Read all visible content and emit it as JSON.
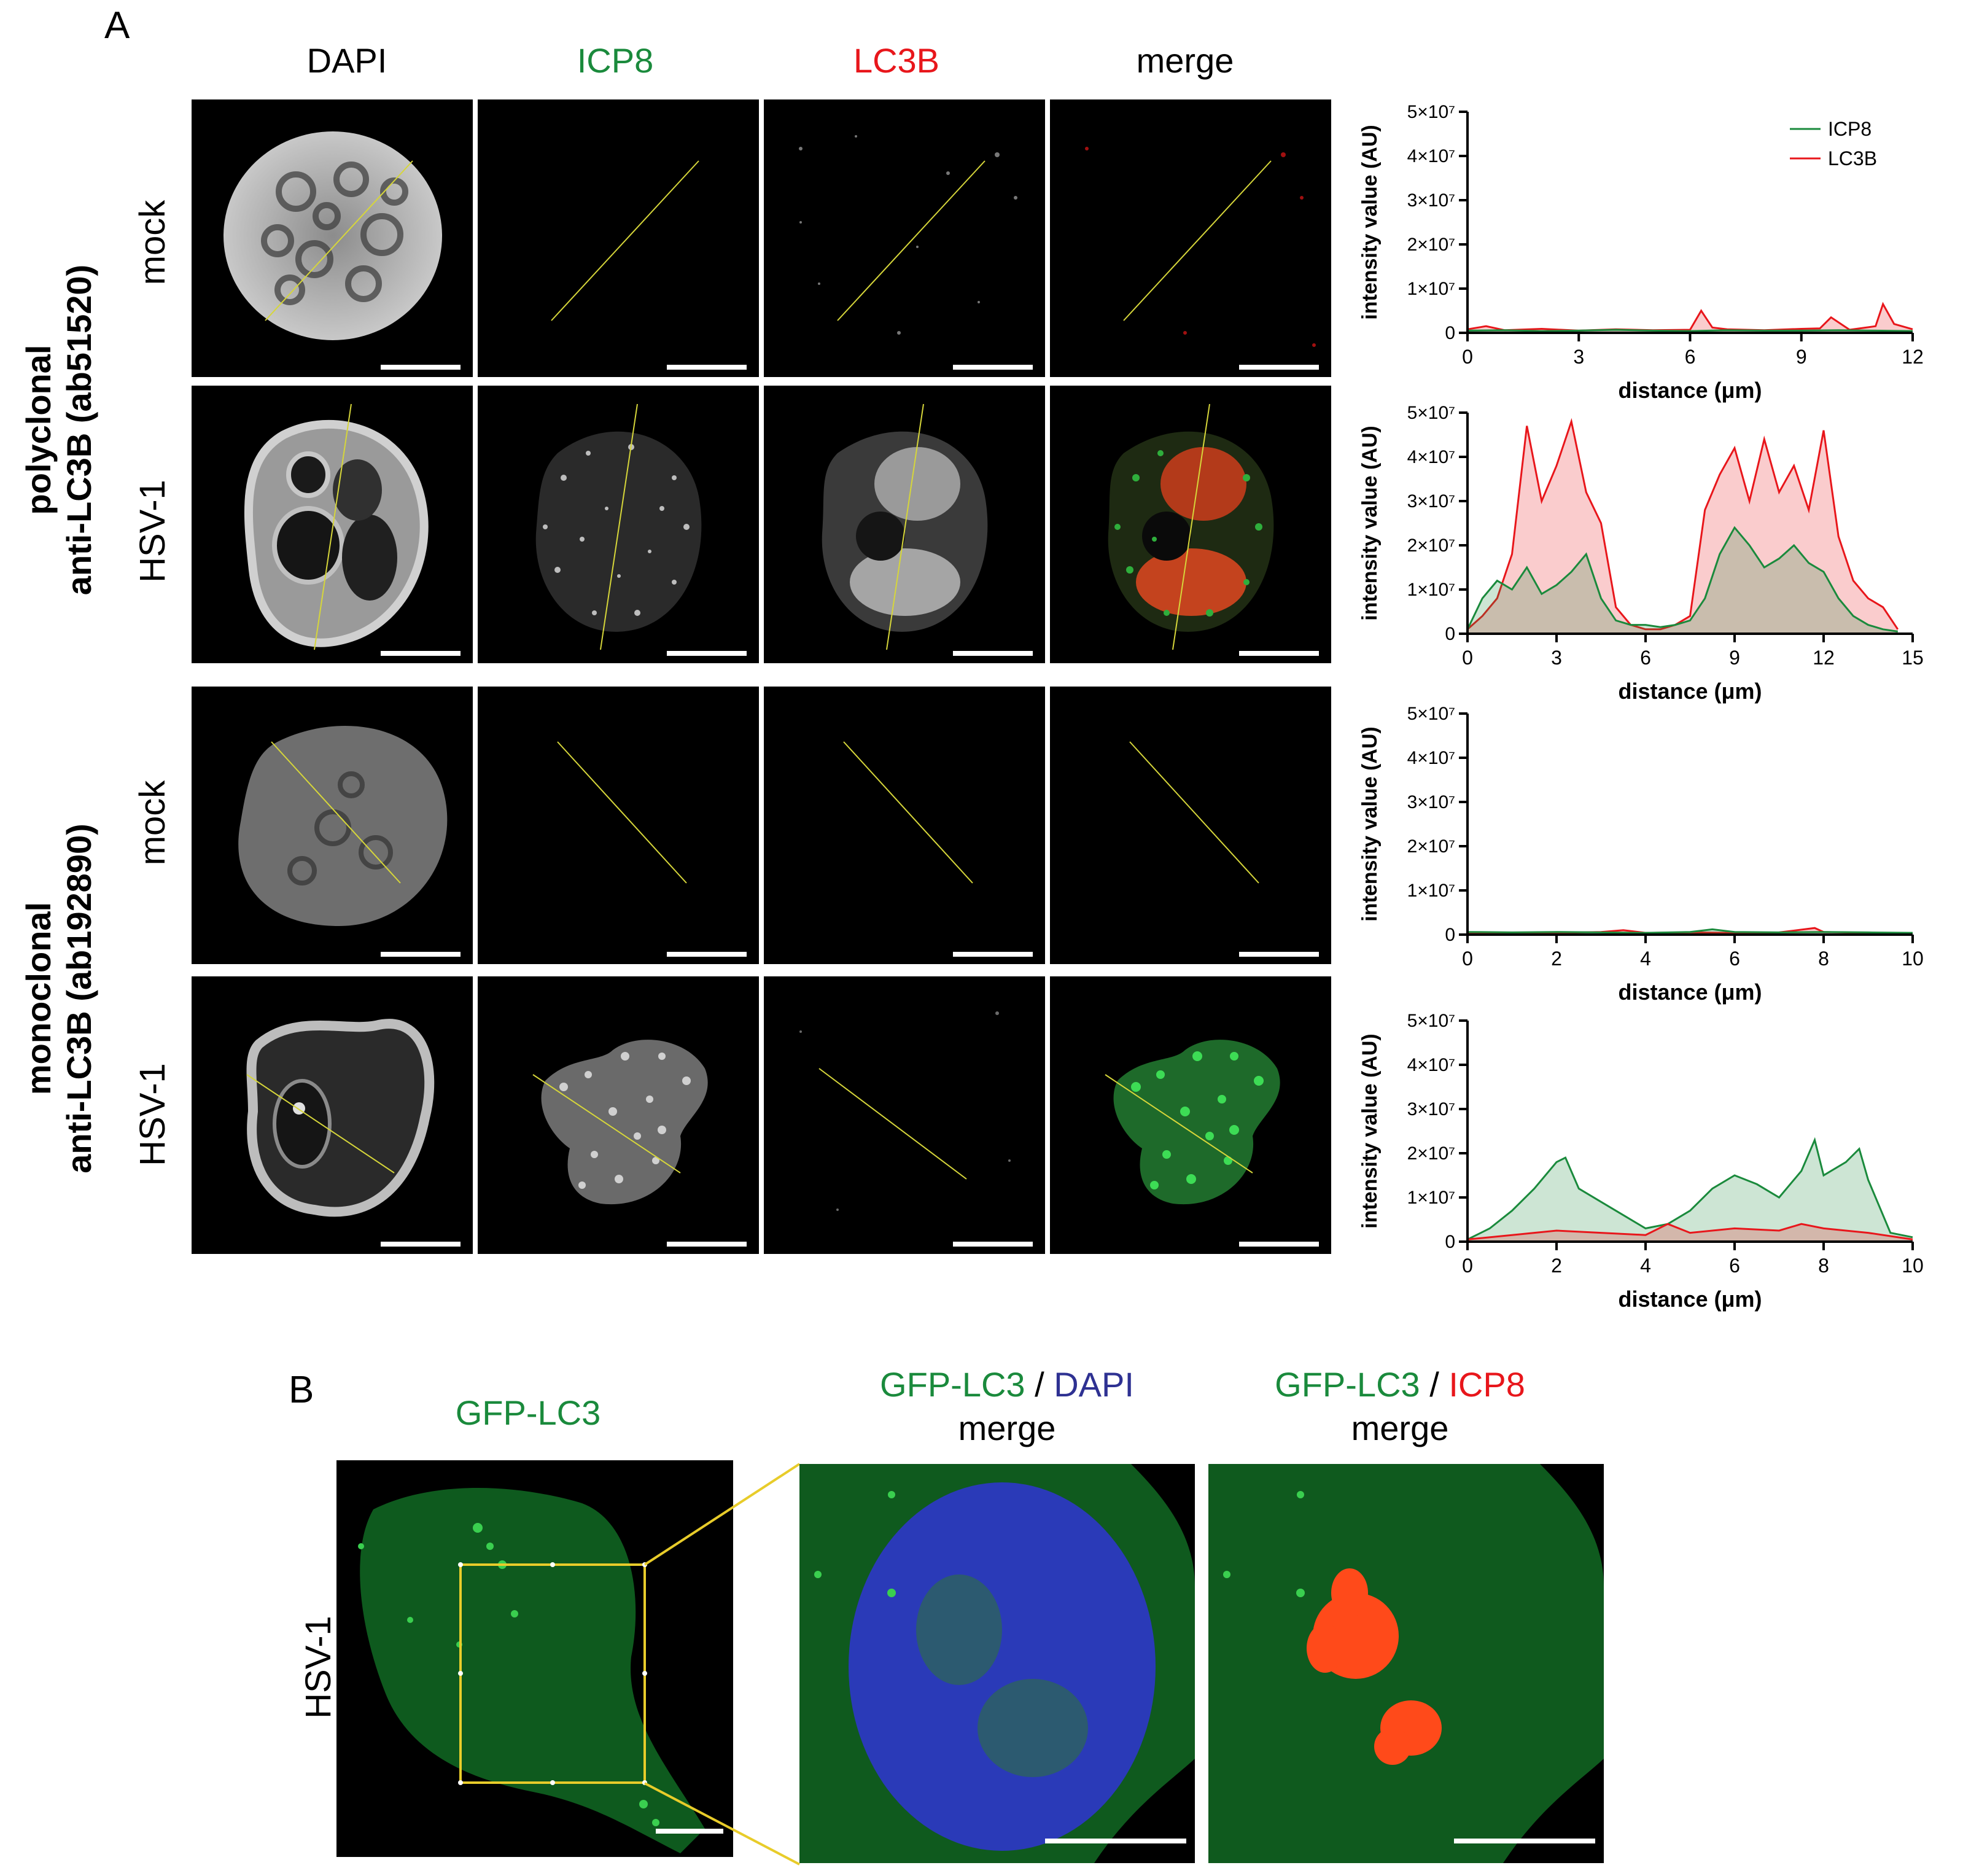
{
  "panel_a": {
    "letter": "A",
    "columns": [
      "DAPI",
      "ICP8",
      "LC3B",
      "merge"
    ],
    "column_colors": [
      "#000000",
      "#1a8a3c",
      "#e8161b",
      "#000000"
    ],
    "groups": [
      {
        "line1": "polyclonal",
        "line2": "anti-LC3B (ab51520)"
      },
      {
        "line1": "monoclonal",
        "line2": "anti-LC3B (ab192890)"
      }
    ],
    "rows": [
      "mock",
      "HSV-1",
      "mock",
      "HSV-1"
    ],
    "legend": [
      "ICP8",
      "LC3B"
    ]
  },
  "panel_b": {
    "letter": "B",
    "row_label": "HSV-1",
    "head1": "GFP-LC3",
    "head2_a": "GFP-LC3",
    "head2_sep": " / ",
    "head2_b": "DAPI",
    "head2_line2": "merge",
    "head3_a": "GFP-LC3",
    "head3_sep": " / ",
    "head3_b": "ICP8",
    "head3_line2": "merge",
    "colors": {
      "green": "#1a8a3c",
      "blue": "#2e3192",
      "red": "#e8161b"
    }
  },
  "chart_data": [
    {
      "type": "area",
      "ylabel": "intensity value (AU)",
      "xlabel": "distance (μm)",
      "ylim": [
        0,
        50000000
      ],
      "xlim": [
        0,
        12
      ],
      "xticks": [
        "0",
        "3",
        "6",
        "9",
        "12"
      ],
      "yticks": [
        "0",
        "1×10⁷",
        "2×10⁷",
        "3×10⁷",
        "4×10⁷",
        "5×10⁷"
      ],
      "legend_position": "top-right",
      "series": [
        {
          "name": "ICP8",
          "color": "#1a8a3c",
          "x": [
            0,
            1,
            2,
            3,
            4,
            5,
            6,
            7,
            8,
            9,
            10,
            11,
            12
          ],
          "values": [
            500000.0,
            600000.0,
            400000.0,
            500000.0,
            700000.0,
            500000.0,
            400000.0,
            600000.0,
            500000.0,
            500000.0,
            600000.0,
            500000.0,
            400000.0
          ]
        },
        {
          "name": "LC3B",
          "color": "#e8161b",
          "x": [
            0,
            0.5,
            1,
            2,
            3,
            4,
            5,
            6,
            6.3,
            6.6,
            7,
            8,
            9,
            9.5,
            9.8,
            10.3,
            11,
            11.2,
            11.5,
            12
          ],
          "values": [
            800000.0,
            1500000.0,
            600000.0,
            900000.0,
            500000.0,
            800000.0,
            600000.0,
            700000.0,
            5000000.0,
            1200000.0,
            800000.0,
            600000.0,
            900000.0,
            1000000.0,
            3500000.0,
            700000.0,
            1500000.0,
            6500000.0,
            2000000.0,
            800000.0
          ]
        }
      ]
    },
    {
      "type": "area",
      "ylabel": "intensity value (AU)",
      "xlabel": "distance (μm)",
      "ylim": [
        0,
        50000000
      ],
      "xlim": [
        0,
        15
      ],
      "xticks": [
        "0",
        "3",
        "6",
        "9",
        "12",
        "15"
      ],
      "yticks": [
        "0",
        "1×10⁷",
        "2×10⁷",
        "3×10⁷",
        "4×10⁷",
        "5×10⁷"
      ],
      "series": [
        {
          "name": "ICP8",
          "color": "#1a8a3c",
          "x": [
            0,
            0.5,
            1,
            1.5,
            2,
            2.5,
            3,
            3.5,
            4,
            4.5,
            5,
            5.5,
            6,
            6.5,
            7,
            7.5,
            8,
            8.5,
            9,
            9.5,
            10,
            10.5,
            11,
            11.5,
            12,
            12.5,
            13,
            13.5,
            14,
            14.5
          ],
          "values": [
            1000000.0,
            8000000.0,
            12000000.0,
            10000000.0,
            15000000.0,
            9000000.0,
            11000000.0,
            14000000.0,
            18000000.0,
            8000000.0,
            3000000.0,
            2000000.0,
            2000000.0,
            1500000.0,
            2000000.0,
            3000000.0,
            8000000.0,
            18000000.0,
            24000000.0,
            20000000.0,
            15000000.0,
            17000000.0,
            20000000.0,
            16000000.0,
            14000000.0,
            8000000.0,
            4000000.0,
            2000000.0,
            1000000.0,
            500000.0
          ]
        },
        {
          "name": "LC3B",
          "color": "#e8161b",
          "x": [
            0,
            0.5,
            1,
            1.5,
            2,
            2.5,
            3,
            3.5,
            4,
            4.5,
            5,
            5.5,
            6,
            6.5,
            7,
            7.5,
            8,
            8.5,
            9,
            9.5,
            10,
            10.5,
            11,
            11.5,
            12,
            12.5,
            13,
            13.5,
            14,
            14.5
          ],
          "values": [
            1000000.0,
            4000000.0,
            8000000.0,
            18000000.0,
            47000000.0,
            30000000.0,
            38000000.0,
            48000000.0,
            32000000.0,
            25000000.0,
            6000000.0,
            2000000.0,
            1000000.0,
            1000000.0,
            2000000.0,
            4000000.0,
            28000000.0,
            36000000.0,
            42000000.0,
            30000000.0,
            44000000.0,
            32000000.0,
            38000000.0,
            28000000.0,
            46000000.0,
            22000000.0,
            12000000.0,
            8000000.0,
            6000000.0,
            1000000.0
          ]
        }
      ]
    },
    {
      "type": "area",
      "ylabel": "intensity value (AU)",
      "xlabel": "distance (μm)",
      "ylim": [
        0,
        50000000
      ],
      "xlim": [
        0,
        10
      ],
      "xticks": [
        "0",
        "2",
        "4",
        "6",
        "8",
        "10"
      ],
      "yticks": [
        "0",
        "1×10⁷",
        "2×10⁷",
        "3×10⁷",
        "4×10⁷",
        "5×10⁷"
      ],
      "series": [
        {
          "name": "ICP8",
          "color": "#1a8a3c",
          "x": [
            0,
            1,
            2,
            3,
            4,
            5,
            5.5,
            6,
            7,
            8,
            9,
            10
          ],
          "values": [
            600000.0,
            500000.0,
            600000.0,
            500000.0,
            400000.0,
            600000.0,
            1200000.0,
            600000.0,
            500000.0,
            600000.0,
            500000.0,
            400000.0
          ]
        },
        {
          "name": "LC3B",
          "color": "#e8161b",
          "x": [
            0,
            1,
            2,
            3,
            3.5,
            4,
            5,
            6,
            7,
            7.8,
            8,
            9,
            10
          ],
          "values": [
            400000.0,
            300000.0,
            400000.0,
            600000.0,
            1000000.0,
            400000.0,
            500000.0,
            400000.0,
            500000.0,
            1500000.0,
            600000.0,
            400000.0,
            300000.0
          ]
        }
      ]
    },
    {
      "type": "area",
      "ylabel": "intensity value (AU)",
      "xlabel": "distance (μm)",
      "ylim": [
        0,
        50000000
      ],
      "xlim": [
        0,
        10
      ],
      "xticks": [
        "0",
        "2",
        "4",
        "6",
        "8",
        "10"
      ],
      "yticks": [
        "0",
        "1×10⁷",
        "2×10⁷",
        "3×10⁷",
        "4×10⁷",
        "5×10⁷"
      ],
      "series": [
        {
          "name": "ICP8",
          "color": "#1a8a3c",
          "x": [
            0,
            0.5,
            1,
            1.5,
            2,
            2.2,
            2.5,
            3,
            3.5,
            4,
            4.5,
            5,
            5.5,
            6,
            6.5,
            7,
            7.5,
            7.8,
            8,
            8.5,
            8.8,
            9,
            9.5,
            10
          ],
          "values": [
            500000.0,
            3000000.0,
            7000000.0,
            12000000.0,
            18000000.0,
            19000000.0,
            12000000.0,
            9000000.0,
            6000000.0,
            3000000.0,
            4000000.0,
            7000000.0,
            12000000.0,
            15000000.0,
            13000000.0,
            10000000.0,
            16000000.0,
            23000000.0,
            15000000.0,
            18000000.0,
            21000000.0,
            14000000.0,
            2000000.0,
            1000000.0
          ]
        },
        {
          "name": "LC3B",
          "color": "#e8161b",
          "x": [
            0,
            1,
            2,
            3,
            4,
            4.5,
            5,
            6,
            7,
            7.5,
            8,
            9,
            10
          ],
          "values": [
            500000.0,
            1500000.0,
            2500000.0,
            2000000.0,
            1500000.0,
            4000000.0,
            2000000.0,
            3000000.0,
            2500000.0,
            4000000.0,
            3000000.0,
            2000000.0,
            500000.0
          ]
        }
      ]
    }
  ]
}
